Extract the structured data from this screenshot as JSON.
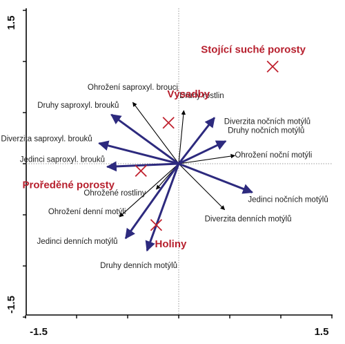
{
  "chart_data": {
    "type": "scatter",
    "subtype": "ordination-biplot",
    "title": "",
    "xlabel": "",
    "ylabel": "",
    "xlim": [
      -1.5,
      1.5
    ],
    "ylim": [
      -1.5,
      1.5
    ],
    "x_tick_labels": [
      "-1.5",
      "1.5"
    ],
    "y_tick_labels": [
      "1.5",
      "-1.5"
    ],
    "colors": {
      "species_arrow": "#000000",
      "environment_arrow": "#2d2a7e",
      "site_marker": "#c0212e",
      "site_label": "#b7202e",
      "reference_line": "#9a9a9a"
    },
    "species_arrows": [
      {
        "label": "Ohrožení saproxyl. brouci",
        "x": -0.45,
        "y": 0.6
      },
      {
        "label": "Druhy rostlin",
        "x": 0.05,
        "y": 0.52
      },
      {
        "label": "Ohrožení noční motýli",
        "x": 0.55,
        "y": 0.08
      },
      {
        "label": "Diverzita denních motýlů",
        "x": 0.45,
        "y": -0.45
      },
      {
        "label": "Ohrožení denní motýli",
        "x": -0.58,
        "y": -0.52
      },
      {
        "label": "Ohrožené rostliny",
        "x": -0.22,
        "y": -0.25
      }
    ],
    "environment_arrows": [
      {
        "label": "Druhy saproxyl. brouků",
        "x": -0.66,
        "y": 0.48
      },
      {
        "label": "Diverzita saproxyl. brouků",
        "x": -0.78,
        "y": 0.2
      },
      {
        "label": "Jedinci saproxyl. brouků",
        "x": -0.7,
        "y": -0.03
      },
      {
        "label": "Diverzita nočních motýlů",
        "x": 0.35,
        "y": 0.45
      },
      {
        "label": "Druhy nočních motýlů",
        "x": 0.46,
        "y": 0.22
      },
      {
        "label": "Jedinci nočních motýlů",
        "x": 0.72,
        "y": -0.28
      },
      {
        "label": "Jedinci denních motýlů",
        "x": -0.52,
        "y": -0.73
      },
      {
        "label": "Druhy denních motýlů",
        "x": -0.31,
        "y": -0.85
      }
    ],
    "sites": [
      {
        "label": "Stojící suché porosty",
        "x": 0.92,
        "y": 0.95
      },
      {
        "label": "Výsadby",
        "x": -0.1,
        "y": 0.4
      },
      {
        "label": "Proředěné porosty",
        "x": -0.37,
        "y": -0.07
      },
      {
        "label": "Holiny",
        "x": -0.22,
        "y": -0.6
      }
    ]
  }
}
